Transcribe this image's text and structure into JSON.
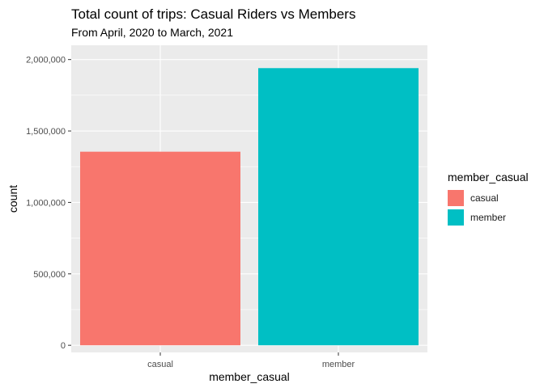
{
  "chart_data": {
    "type": "bar",
    "title": "Total count of trips: Casual Riders vs Members",
    "subtitle": "From April, 2020 to March, 2021",
    "xlabel": "member_casual",
    "ylabel": "count",
    "categories": [
      "casual",
      "member"
    ],
    "values": [
      1355000,
      1940000
    ],
    "colors": [
      "#F8766D",
      "#00BFC4"
    ],
    "ylim": [
      -50000,
      2100000
    ],
    "yticks": [
      0,
      500000,
      1000000,
      1500000,
      2000000
    ],
    "ytick_labels": [
      "0",
      "500,000",
      "1,000,000",
      "1,500,000",
      "2,000,000"
    ],
    "grid": true,
    "legend": {
      "title": "member_casual",
      "position": "right",
      "items": [
        "casual",
        "member"
      ]
    }
  }
}
